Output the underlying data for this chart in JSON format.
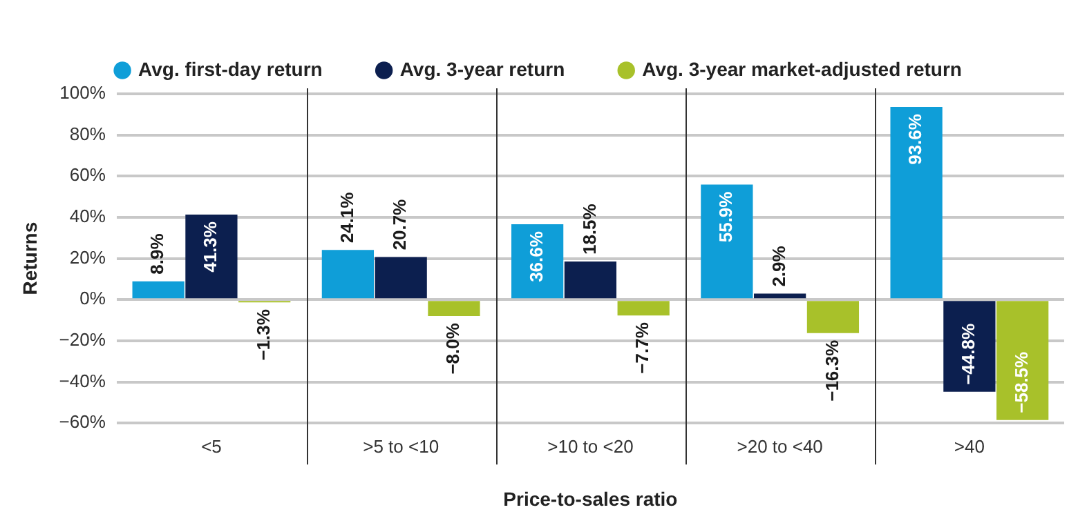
{
  "chart_data": {
    "type": "bar",
    "xlabel": "Price-to-sales ratio",
    "ylabel": "Returns",
    "categories": [
      "<5",
      ">5 to <10",
      ">10 to <20",
      ">20 to <40",
      ">40"
    ],
    "series": [
      {
        "name": "Avg. first-day return",
        "color": "#0f9ed8",
        "values": [
          8.9,
          24.1,
          36.6,
          55.9,
          93.6
        ]
      },
      {
        "name": "Avg. 3-year return",
        "color": "#0c1f4f",
        "values": [
          41.3,
          20.7,
          18.5,
          2.9,
          -44.8
        ]
      },
      {
        "name": "Avg. 3-year market-adjusted return",
        "color": "#a8c12a",
        "values": [
          -1.3,
          -8.0,
          -7.7,
          -16.3,
          -58.5
        ]
      }
    ],
    "value_labels": [
      [
        "8.9%",
        "24.1%",
        "36.6%",
        "55.9%",
        "93.6%"
      ],
      [
        "41.3%",
        "20.7%",
        "18.5%",
        "2.9%",
        "−44.8%"
      ],
      [
        "−1.3%",
        "−8.0%",
        "−7.7%",
        "−16.3%",
        "−58.5%"
      ]
    ],
    "ylim": [
      -60,
      100
    ],
    "yticks": [
      {
        "value": 100,
        "label": "100%"
      },
      {
        "value": 80,
        "label": "80%"
      },
      {
        "value": 60,
        "label": "60%"
      },
      {
        "value": 40,
        "label": "40%"
      },
      {
        "value": 20,
        "label": "20%"
      },
      {
        "value": 0,
        "label": "0%"
      },
      {
        "value": -20,
        "label": "−20%"
      },
      {
        "value": -40,
        "label": "−40%"
      },
      {
        "value": -60,
        "label": "−60%"
      }
    ],
    "grid": "y",
    "legend": "top"
  }
}
